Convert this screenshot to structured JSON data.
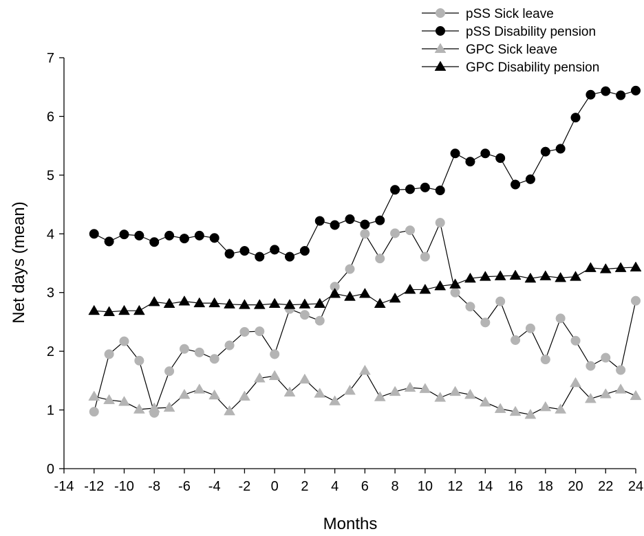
{
  "chart_data": {
    "type": "line",
    "xlabel": "Months",
    "ylabel": "Net days (mean)",
    "xlim": [
      -14,
      24
    ],
    "ylim": [
      0,
      7
    ],
    "xticks": [
      -14,
      -12,
      -10,
      -8,
      -6,
      -4,
      -2,
      0,
      2,
      4,
      6,
      8,
      10,
      12,
      14,
      16,
      18,
      20,
      22,
      24
    ],
    "yticks": [
      0,
      1,
      2,
      3,
      4,
      5,
      6,
      7
    ],
    "grid": false,
    "legend_position": "top-right",
    "x": [
      -12,
      -11,
      -10,
      -9,
      -8,
      -7,
      -6,
      -5,
      -4,
      -3,
      -2,
      -1,
      0,
      1,
      2,
      3,
      4,
      5,
      6,
      7,
      8,
      9,
      10,
      11,
      12,
      13,
      14,
      15,
      16,
      17,
      18,
      19,
      20,
      21,
      22,
      23,
      24
    ],
    "series": [
      {
        "name": "pSS Sick leave",
        "marker": "circle",
        "color": "#b4b4b4",
        "values": [
          0.97,
          1.95,
          2.17,
          1.84,
          0.95,
          1.66,
          2.04,
          1.98,
          1.87,
          2.1,
          2.33,
          2.34,
          1.95,
          2.72,
          2.62,
          2.52,
          3.1,
          3.4,
          4.0,
          3.58,
          4.01,
          4.06,
          3.61,
          4.19,
          3.0,
          2.76,
          2.49,
          2.85,
          2.19,
          2.39,
          1.86,
          2.56,
          2.18,
          1.75,
          1.89,
          1.68,
          2.86
        ]
      },
      {
        "name": "pSS Disability pension",
        "marker": "circle",
        "color": "#000000",
        "values": [
          4.0,
          3.87,
          3.99,
          3.97,
          3.86,
          3.97,
          3.92,
          3.97,
          3.93,
          3.66,
          3.71,
          3.61,
          3.73,
          3.61,
          3.71,
          4.22,
          4.15,
          4.25,
          4.16,
          4.23,
          4.75,
          4.76,
          4.79,
          4.74,
          5.37,
          5.23,
          5.37,
          5.29,
          4.84,
          4.93,
          5.4,
          5.45,
          5.98,
          6.37,
          6.43,
          6.36,
          6.44
        ]
      },
      {
        "name": "GPC Sick leave",
        "marker": "triangle",
        "color": "#b4b4b4",
        "values": [
          1.23,
          1.17,
          1.14,
          1.01,
          1.03,
          1.04,
          1.26,
          1.35,
          1.25,
          0.98,
          1.23,
          1.54,
          1.58,
          1.3,
          1.52,
          1.28,
          1.15,
          1.33,
          1.67,
          1.22,
          1.31,
          1.38,
          1.36,
          1.21,
          1.31,
          1.26,
          1.13,
          1.02,
          0.97,
          0.92,
          1.05,
          1.01,
          1.46,
          1.19,
          1.27,
          1.35,
          1.24
        ]
      },
      {
        "name": "GPC Disability pension",
        "marker": "triangle",
        "color": "#000000",
        "values": [
          2.69,
          2.67,
          2.69,
          2.69,
          2.84,
          2.81,
          2.85,
          2.82,
          2.82,
          2.8,
          2.79,
          2.79,
          2.81,
          2.79,
          2.8,
          2.81,
          2.98,
          2.93,
          2.98,
          2.81,
          2.9,
          3.05,
          3.05,
          3.11,
          3.14,
          3.24,
          3.27,
          3.28,
          3.29,
          3.24,
          3.28,
          3.25,
          3.27,
          3.42,
          3.4,
          3.42,
          3.43
        ]
      }
    ]
  }
}
